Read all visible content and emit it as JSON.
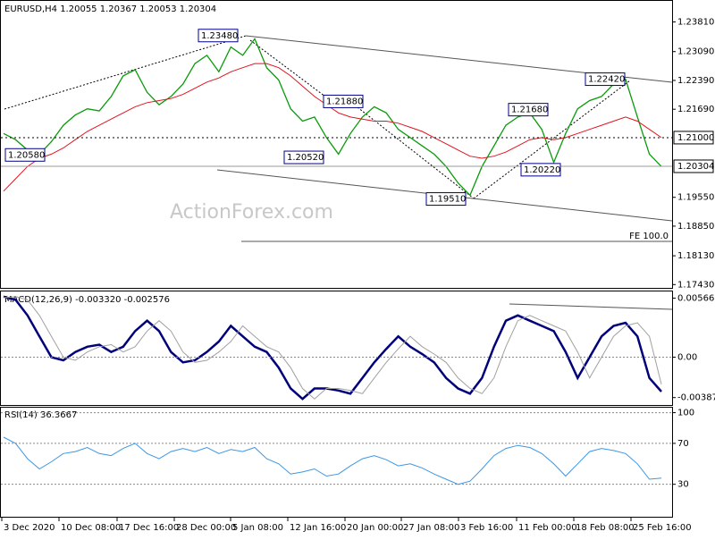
{
  "chart_data": {
    "type": "line",
    "title": "EURUSD,H4 1.20055 1.20367 1.20053 1.20304",
    "watermark": "ActionForex.com",
    "x_labels": [
      "3 Dec 2020",
      "10 Dec 08:00",
      "17 Dec 16:00",
      "28 Dec 00:00",
      "5 Jan 08:00",
      "12 Jan 16:00",
      "20 Jan 00:00",
      "27 Jan 08:00",
      "3 Feb 16:00",
      "11 Feb 00:00",
      "18 Feb 08:00",
      "25 Feb 16:00"
    ],
    "ylim": [
      1.1735,
      1.243
    ],
    "yticks": [
      {
        "value": 1.2381,
        "label": "1.23810"
      },
      {
        "value": 1.2309,
        "label": "1.23090"
      },
      {
        "value": 1.2239,
        "label": "1.22390"
      },
      {
        "value": 1.2169,
        "label": "1.21690"
      },
      {
        "value": 1.1955,
        "label": "1.19550"
      },
      {
        "value": 1.1885,
        "label": "1.18850"
      },
      {
        "value": 1.1813,
        "label": "1.18130"
      },
      {
        "value": 1.1743,
        "label": "1.17430"
      }
    ],
    "series": [
      {
        "color": "#0a9a0a",
        "values": [
          1.211,
          1.2095,
          1.207,
          1.206,
          1.209,
          1.213,
          1.2155,
          1.217,
          1.2165,
          1.22,
          1.225,
          1.2265,
          1.221,
          1.218,
          1.22,
          1.223,
          1.228,
          1.23,
          1.226,
          1.232,
          1.23,
          1.234,
          1.227,
          1.224,
          1.217,
          1.214,
          1.215,
          1.21,
          1.206,
          1.211,
          1.215,
          1.2175,
          1.216,
          1.212,
          1.21,
          1.208,
          1.206,
          1.203,
          1.199,
          1.196,
          1.203,
          1.208,
          1.213,
          1.215,
          1.216,
          1.212,
          1.204,
          1.211,
          1.217,
          1.219,
          1.22,
          1.223,
          1.2242,
          1.215,
          1.206,
          1.203
        ]
      },
      {
        "color": "#e0141e",
        "values": [
          1.197,
          1.2,
          1.203,
          1.205,
          1.206,
          1.2075,
          1.2095,
          1.2115,
          1.213,
          1.2145,
          1.216,
          1.2175,
          1.2185,
          1.219,
          1.2195,
          1.2205,
          1.222,
          1.2235,
          1.2245,
          1.226,
          1.227,
          1.228,
          1.228,
          1.227,
          1.225,
          1.2225,
          1.22,
          1.218,
          1.216,
          1.215,
          1.2145,
          1.214,
          1.214,
          1.2135,
          1.2125,
          1.2115,
          1.21,
          1.2085,
          1.207,
          1.2055,
          1.205,
          1.2055,
          1.2065,
          1.208,
          1.2095,
          1.21,
          1.2095,
          1.21,
          1.211,
          1.212,
          1.213,
          1.214,
          1.215,
          1.214,
          1.212,
          1.21
        ]
      }
    ],
    "annotations": [
      {
        "label": "1.23480",
        "value": 1.2348
      },
      {
        "label": "1.21880",
        "value": 1.2188
      },
      {
        "label": "1.22420",
        "value": 1.2242
      },
      {
        "label": "1.21680",
        "value": 1.2168
      },
      {
        "label": "1.20580",
        "value": 1.2058
      },
      {
        "label": "1.20520",
        "value": 1.2052
      },
      {
        "label": "1.20220",
        "value": 1.2022
      },
      {
        "label": "1.19510",
        "value": 1.1951
      }
    ],
    "levels": [
      {
        "label": "1.21000",
        "value": 1.21,
        "color": "#000000",
        "dashed": true
      },
      {
        "label": "1.20304",
        "value": 1.20304,
        "color": "#000000",
        "dashed": false
      }
    ],
    "fe_label": "FE 100.0",
    "macd": {
      "title": "MACD(12,26,9) -0.003320 -0.002576",
      "ylim": [
        -0.0045,
        0.0063
      ],
      "yticks": [
        0.005662,
        {
          "value": 0,
          "label": "0.00"
        },
        -0.003872
      ],
      "series": [
        {
          "color": "#00007a",
          "values": [
            0.0058,
            0.0055,
            0.004,
            0.002,
            0.0,
            -0.0003,
            0.0005,
            0.001,
            0.0012,
            0.0005,
            0.001,
            0.0025,
            0.0035,
            0.0025,
            0.0005,
            -0.0005,
            -0.0003,
            0.0005,
            0.0015,
            0.003,
            0.002,
            0.001,
            0.0005,
            -0.001,
            -0.003,
            -0.004,
            -0.003,
            -0.003,
            -0.0032,
            -0.0035,
            -0.002,
            -0.0005,
            0.0008,
            0.002,
            0.001,
            0.0003,
            -0.0005,
            -0.002,
            -0.003,
            -0.0035,
            -0.002,
            0.001,
            0.0035,
            0.004,
            0.0035,
            0.003,
            0.0025,
            0.0005,
            -0.002,
            0.0,
            0.002,
            0.003,
            0.0033,
            0.002,
            -0.002,
            -0.0033
          ]
        },
        {
          "color": "#a0a0a0",
          "values": [
            0.0057,
            0.0058,
            0.0055,
            0.004,
            0.002,
            0.0,
            -0.0003,
            0.0005,
            0.001,
            0.0012,
            0.0005,
            0.001,
            0.0025,
            0.0035,
            0.0025,
            0.0005,
            -0.0005,
            -0.0003,
            0.0005,
            0.0015,
            0.003,
            0.002,
            0.001,
            0.0005,
            -0.001,
            -0.003,
            -0.004,
            -0.003,
            -0.003,
            -0.0032,
            -0.0035,
            -0.002,
            -0.0005,
            0.0008,
            0.002,
            0.001,
            0.0003,
            -0.0005,
            -0.002,
            -0.003,
            -0.0035,
            -0.002,
            0.001,
            0.0035,
            0.004,
            0.0035,
            0.003,
            0.0025,
            0.0005,
            -0.002,
            0.0,
            0.002,
            0.003,
            0.0033,
            0.002,
            -0.0026
          ]
        }
      ]
    },
    "rsi": {
      "title": "RSI(14) 36.3667",
      "ylim": [
        0,
        104
      ],
      "yticks": [
        100,
        70,
        30
      ],
      "series": [
        {
          "color": "#3c96e6",
          "values": [
            76,
            70,
            55,
            45,
            52,
            60,
            62,
            66,
            60,
            58,
            65,
            70,
            60,
            55,
            62,
            65,
            62,
            66,
            60,
            64,
            62,
            66,
            55,
            50,
            40,
            42,
            45,
            38,
            40,
            48,
            55,
            58,
            54,
            48,
            50,
            46,
            40,
            35,
            30,
            33,
            45,
            58,
            65,
            68,
            66,
            60,
            50,
            38,
            50,
            62,
            65,
            63,
            60,
            50,
            35,
            36
          ]
        }
      ]
    }
  }
}
